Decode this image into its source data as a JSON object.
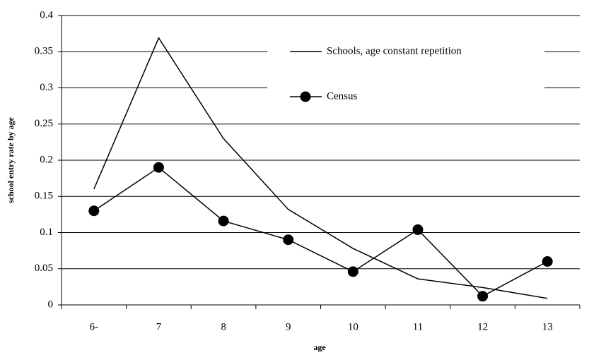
{
  "chart_data": {
    "type": "line",
    "xlabel": "age",
    "ylabel": "school entry rate by age",
    "categories": [
      "6-",
      "7",
      "8",
      "9",
      "10",
      "11",
      "12",
      "13"
    ],
    "series": [
      {
        "name": "Schools, age constant repetition",
        "color": "#000000",
        "marker": false,
        "values": [
          0.16,
          0.369,
          0.23,
          0.132,
          0.078,
          0.036,
          0.024,
          0.009
        ]
      },
      {
        "name": "Census",
        "color": "#000000",
        "marker": true,
        "values": [
          0.13,
          0.19,
          0.116,
          0.09,
          0.046,
          0.104,
          0.012,
          0.06
        ]
      }
    ],
    "ylim": [
      0,
      0.4
    ],
    "yticks": [
      0,
      0.05,
      0.1,
      0.15,
      0.2,
      0.25,
      0.3,
      0.35,
      0.4
    ],
    "grid": true
  }
}
